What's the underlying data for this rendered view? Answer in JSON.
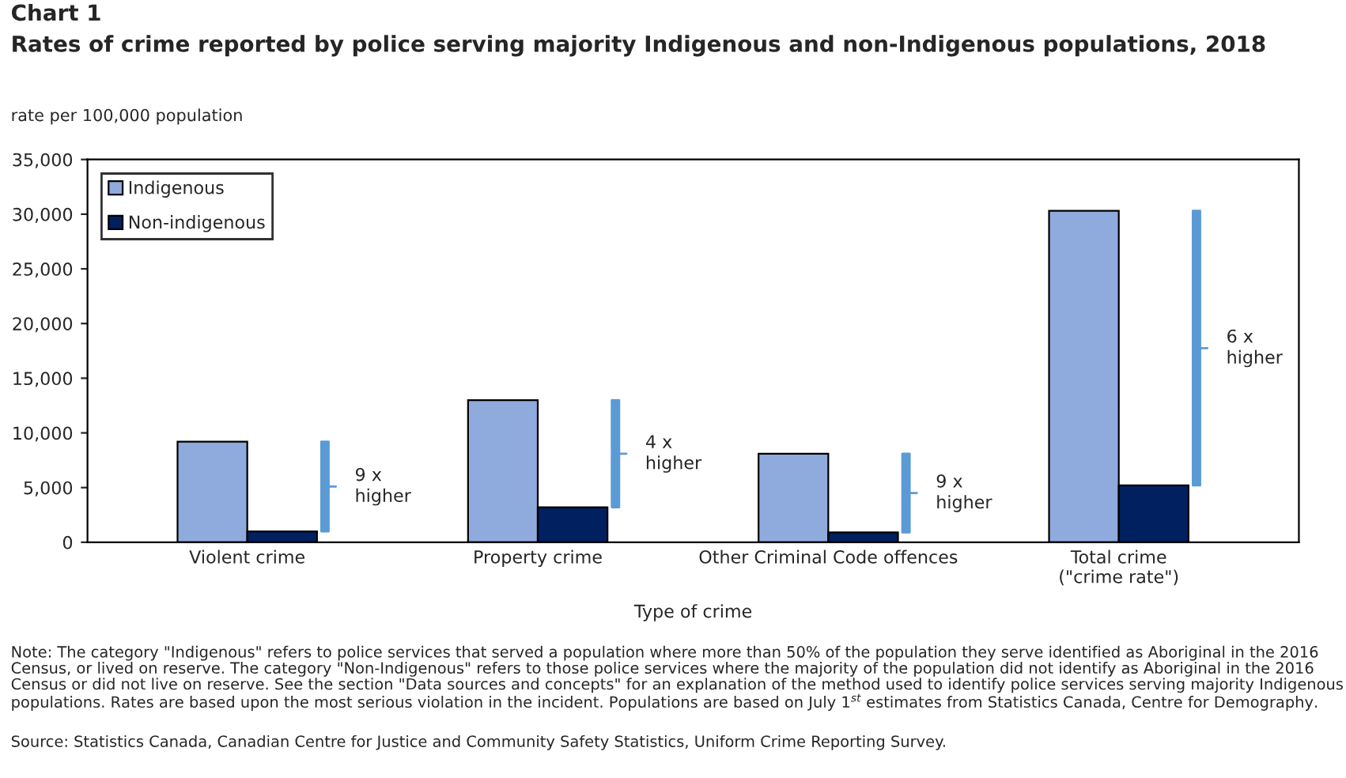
{
  "chart_data": {
    "type": "bar",
    "title": "Chart 1",
    "subtitle": "Rates of crime reported by police serving majority Indigenous and non-Indigenous populations, 2018",
    "ylabel": "rate per 100,000 population",
    "xlabel": "Type of crime",
    "categories": [
      "Violent crime",
      "Property crime",
      "Other Criminal Code offences",
      "Total crime\n(\"crime rate\")"
    ],
    "series": [
      {
        "name": "Indigenous",
        "color": "#8faadc",
        "values": [
          9200,
          13000,
          8100,
          30300
        ]
      },
      {
        "name": "Non-indigenous",
        "color": "#002060",
        "values": [
          1000,
          3200,
          900,
          5200
        ]
      }
    ],
    "ylim": [
      0,
      35000
    ],
    "yticks": [
      {
        "value": 0,
        "label": "0"
      },
      {
        "value": 5000,
        "label": "5,000"
      },
      {
        "value": 10000,
        "label": "10,000"
      },
      {
        "value": 15000,
        "label": "15,000"
      },
      {
        "value": 20000,
        "label": "20,000"
      },
      {
        "value": 25000,
        "label": "25,000"
      },
      {
        "value": 30000,
        "label": "30,000"
      },
      {
        "value": 35000,
        "label": "35,000"
      }
    ],
    "grid": false,
    "legend": "top left",
    "annotations": [
      "9 x\nhigher",
      "4 x\nhigher",
      "9 x\nhigher",
      "6 x\nhigher",
      "Note: The category \"Indigenous\" refers to police services that served a population where more than 50% of the population they serve identified as Aboriginal in the 2016 Census, or lived on reserve. The category \"Non-Indigenous\" refers to those police services where the majority of the population did not identify as Aboriginal in the 2016 Census or did not live on reserve. See the section \"Data sources and concepts\" for an explanation of the method used to identify police services serving majority Indigenous populations. Rates are based upon the most serious violation in the incident. Populations are based on July 1$^{st}$ estimates from Statistics Canada, Centre for Demography.",
      "Source: Statistics Canada, Canadian Centre for Justice and Community Safety Statistics, Uniform Crime Reporting Survey."
    ]
  }
}
